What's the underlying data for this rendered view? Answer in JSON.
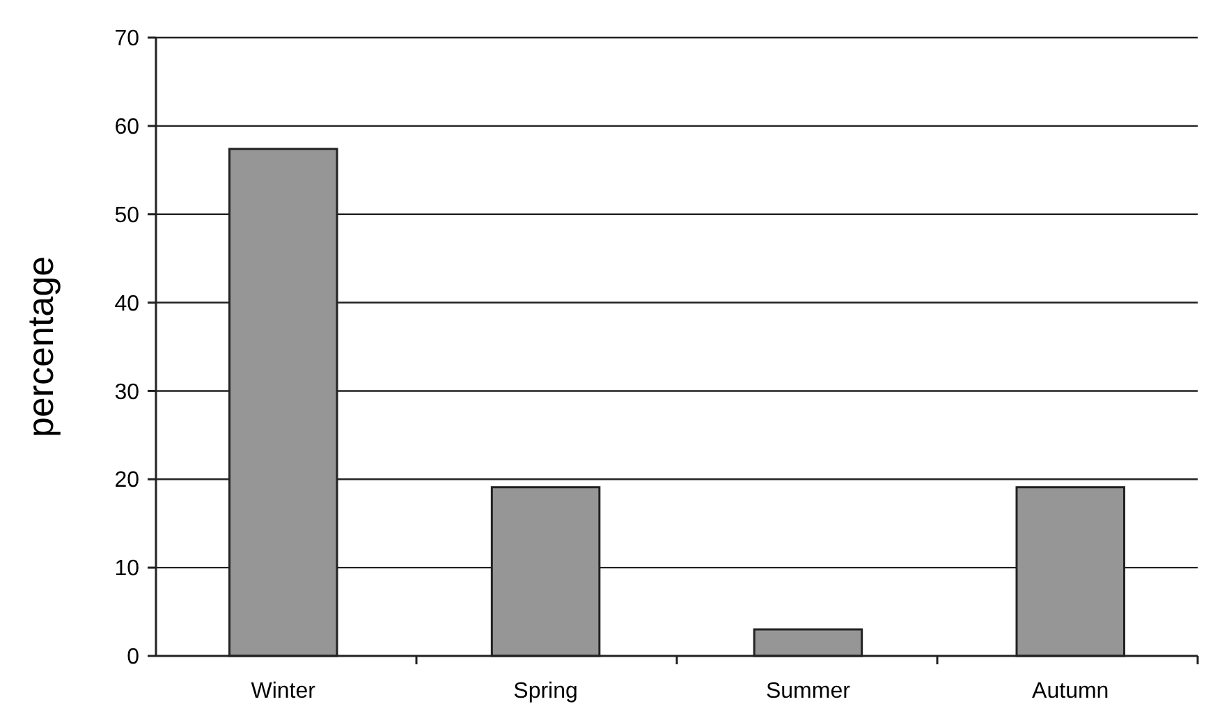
{
  "chart_data": {
    "type": "bar",
    "ylabel": "percentage",
    "categories": [
      "Winter",
      "Spring",
      "Summer",
      "Autumn"
    ],
    "values": [
      57.4,
      19.1,
      3.0,
      19.1
    ],
    "color": "#969696",
    "ylim": [
      0,
      70
    ],
    "yticks": [
      0,
      10,
      20,
      30,
      40,
      50,
      60,
      70
    ],
    "grid": "y"
  }
}
